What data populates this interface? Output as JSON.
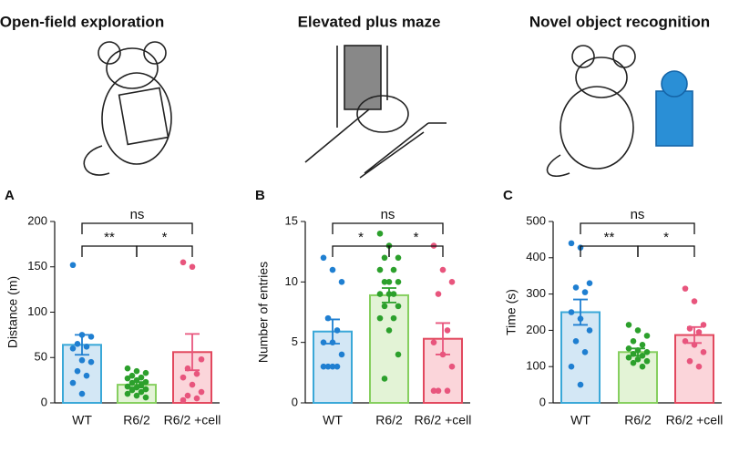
{
  "chart_data": [
    {
      "type": "bar",
      "title": "Open-field exploration",
      "panel": "A",
      "ylabel": "Distance (m)",
      "categories": [
        "WT",
        "R6/2",
        "R6/2 +cell"
      ],
      "values": [
        64,
        20,
        56
      ],
      "errors": [
        11,
        3,
        20
      ],
      "points": [
        [
          152,
          75,
          73,
          65,
          62,
          60,
          47,
          45,
          35,
          30,
          22,
          10
        ],
        [
          38,
          35,
          33,
          30,
          28,
          27,
          25,
          23,
          22,
          20,
          18,
          17,
          15,
          14,
          12,
          10,
          8,
          6
        ],
        [
          155,
          150,
          48,
          38,
          32,
          28,
          20,
          12,
          8,
          5,
          3
        ]
      ],
      "colors": [
        "#1f7fd1",
        "#2ca02c",
        "#e8557d"
      ],
      "fills": [
        "#d3e7f5",
        "#e3f3d6",
        "#fbd5da"
      ],
      "edges": [
        "#3aa8d8",
        "#86cf5f",
        "#e2485e"
      ],
      "significance": [
        "**",
        "*",
        "ns"
      ],
      "ylim": [
        0,
        200
      ],
      "yticks": [
        0,
        50,
        100,
        150,
        200
      ]
    },
    {
      "type": "bar",
      "title": "Elevated plus maze",
      "panel": "B",
      "ylabel": "Number of entries",
      "categories": [
        "WT",
        "R6/2",
        "R6/2 +cell"
      ],
      "values": [
        5.9,
        8.9,
        5.3
      ],
      "errors": [
        1.0,
        0.6,
        1.3
      ],
      "points": [
        [
          12,
          11,
          10,
          7,
          6,
          5,
          5,
          4,
          3,
          3,
          3,
          3
        ],
        [
          14,
          13,
          12,
          12,
          11,
          11,
          10,
          10,
          10,
          9,
          9,
          9,
          8,
          8,
          7,
          7,
          6,
          4,
          2
        ],
        [
          13,
          11,
          10,
          9,
          6,
          5,
          4,
          3,
          1,
          1,
          1
        ]
      ],
      "colors": [
        "#1f7fd1",
        "#2ca02c",
        "#e8557d"
      ],
      "fills": [
        "#d3e7f5",
        "#e3f3d6",
        "#fbd5da"
      ],
      "edges": [
        "#3aa8d8",
        "#86cf5f",
        "#e2485e"
      ],
      "significance": [
        "*",
        "*",
        "ns"
      ],
      "ylim": [
        0,
        15
      ],
      "yticks": [
        0,
        5,
        10,
        15
      ]
    },
    {
      "type": "bar",
      "title": "Novel object recognition",
      "panel": "C",
      "ylabel": "Time (s)",
      "categories": [
        "WT",
        "R6/2",
        "R6/2 +cell"
      ],
      "values": [
        250,
        140,
        187
      ],
      "errors": [
        35,
        10,
        22
      ],
      "points": [
        [
          440,
          428,
          330,
          318,
          305,
          250,
          232,
          200,
          170,
          140,
          100,
          50
        ],
        [
          215,
          200,
          185,
          170,
          160,
          150,
          145,
          140,
          135,
          130,
          125,
          120,
          115,
          110,
          100
        ],
        [
          315,
          280,
          215,
          205,
          195,
          170,
          160,
          140,
          115,
          100
        ]
      ],
      "colors": [
        "#1f7fd1",
        "#2ca02c",
        "#e8557d"
      ],
      "fills": [
        "#d3e7f5",
        "#e3f3d6",
        "#fbd5da"
      ],
      "edges": [
        "#3aa8d8",
        "#86cf5f",
        "#e2485e"
      ],
      "significance": [
        "**",
        "*",
        "ns"
      ],
      "ylim": [
        0,
        500
      ],
      "yticks": [
        0,
        100,
        200,
        300,
        400,
        500
      ]
    }
  ]
}
